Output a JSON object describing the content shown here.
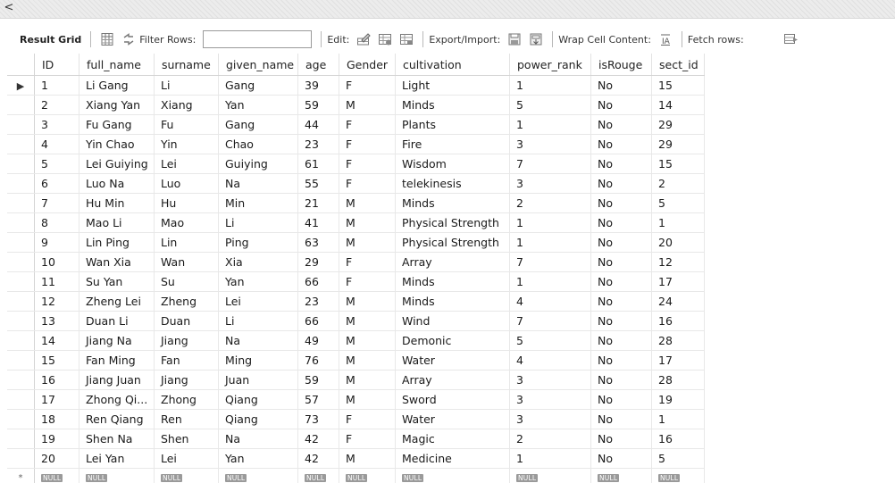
{
  "strip": {
    "collapse_icon": "chevron-left-icon",
    "collapse_glyph": "<"
  },
  "toolbar": {
    "result_grid_label": "Result Grid",
    "filter_rows_label": "Filter Rows:",
    "filter_value": "",
    "edit_label": "Edit:",
    "export_import_label": "Export/Import:",
    "wrap_cell_label": "Wrap Cell Content:",
    "fetch_rows_label": "Fetch rows:"
  },
  "grid": {
    "columns": [
      "ID",
      "full_name",
      "surname",
      "given_name",
      "age",
      "Gender",
      "cultivation",
      "power_rank",
      "isRouge",
      "sect_id"
    ],
    "rows": [
      [
        "1",
        "Li Gang",
        "Li",
        "Gang",
        "39",
        "F",
        "Light",
        "1",
        "No",
        "15"
      ],
      [
        "2",
        "Xiang Yan",
        "Xiang",
        "Yan",
        "59",
        "M",
        "Minds",
        "5",
        "No",
        "14"
      ],
      [
        "3",
        "Fu Gang",
        "Fu",
        "Gang",
        "44",
        "F",
        "Plants",
        "1",
        "No",
        "29"
      ],
      [
        "4",
        "Yin Chao",
        "Yin",
        "Chao",
        "23",
        "F",
        "Fire",
        "3",
        "No",
        "29"
      ],
      [
        "5",
        "Lei Guiying",
        "Lei",
        "Guiying",
        "61",
        "F",
        "Wisdom",
        "7",
        "No",
        "15"
      ],
      [
        "6",
        "Luo Na",
        "Luo",
        "Na",
        "55",
        "F",
        "telekinesis",
        "3",
        "No",
        "2"
      ],
      [
        "7",
        "Hu Min",
        "Hu",
        "Min",
        "21",
        "M",
        "Minds",
        "2",
        "No",
        "5"
      ],
      [
        "8",
        "Mao Li",
        "Mao",
        "Li",
        "41",
        "M",
        "Physical Strength",
        "1",
        "No",
        "1"
      ],
      [
        "9",
        "Lin Ping",
        "Lin",
        "Ping",
        "63",
        "M",
        "Physical Strength",
        "1",
        "No",
        "20"
      ],
      [
        "10",
        "Wan Xia",
        "Wan",
        "Xia",
        "29",
        "F",
        "Array",
        "7",
        "No",
        "12"
      ],
      [
        "11",
        "Su Yan",
        "Su",
        "Yan",
        "66",
        "F",
        "Minds",
        "1",
        "No",
        "17"
      ],
      [
        "12",
        "Zheng Lei",
        "Zheng",
        "Lei",
        "23",
        "M",
        "Minds",
        "4",
        "No",
        "24"
      ],
      [
        "13",
        "Duan Li",
        "Duan",
        "Li",
        "66",
        "M",
        "Wind",
        "7",
        "No",
        "16"
      ],
      [
        "14",
        "Jiang Na",
        "Jiang",
        "Na",
        "49",
        "M",
        "Demonic",
        "5",
        "No",
        "28"
      ],
      [
        "15",
        "Fan Ming",
        "Fan",
        "Ming",
        "76",
        "M",
        "Water",
        "4",
        "No",
        "17"
      ],
      [
        "16",
        "Jiang Juan",
        "Jiang",
        "Juan",
        "59",
        "M",
        "Array",
        "3",
        "No",
        "28"
      ],
      [
        "17",
        "Zhong Qi...",
        "Zhong",
        "Qiang",
        "57",
        "M",
        "Sword",
        "3",
        "No",
        "19"
      ],
      [
        "18",
        "Ren Qiang",
        "Ren",
        "Qiang",
        "73",
        "F",
        "Water",
        "3",
        "No",
        "1"
      ],
      [
        "19",
        "Shen Na",
        "Shen",
        "Na",
        "42",
        "F",
        "Magic",
        "2",
        "No",
        "16"
      ],
      [
        "20",
        "Lei Yan",
        "Lei",
        "Yan",
        "42",
        "M",
        "Medicine",
        "1",
        "No",
        "5"
      ]
    ],
    "null_label": "NULL",
    "current_row_marker": "▶",
    "new_row_marker": "*"
  }
}
